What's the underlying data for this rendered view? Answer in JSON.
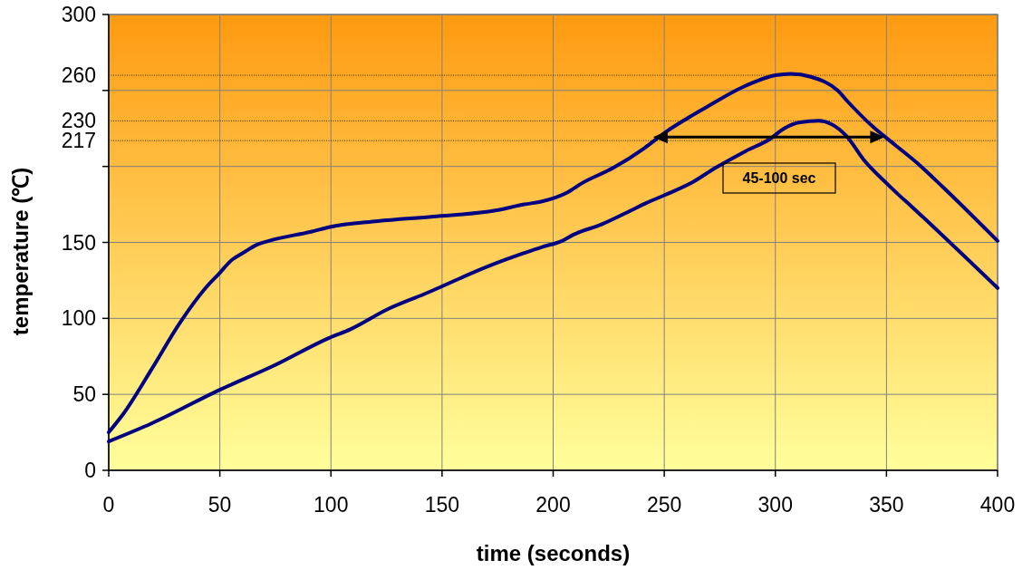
{
  "chart_data": {
    "type": "line",
    "xlabel": "time (seconds)",
    "ylabel": "temperature (℃)",
    "xlim": [
      0,
      400
    ],
    "xticks": [
      0,
      50,
      100,
      150,
      200,
      250,
      300,
      350,
      400
    ],
    "ylim": [
      0,
      300
    ],
    "yticks": [
      0,
      50,
      100,
      150,
      {
        "value": 200,
        "label": null
      },
      {
        "value": 250,
        "label": null
      },
      300
    ],
    "grid": true,
    "marker": "none",
    "line_style": "solid",
    "ref_lines": [
      {
        "axis": "y",
        "value": 217,
        "label": "217",
        "color": "#000000",
        "line_style": "dotted"
      },
      {
        "axis": "y",
        "value": 230,
        "label": "230",
        "color": "#000000",
        "line_style": "dotted"
      },
      {
        "axis": "y",
        "value": 260,
        "label": "260",
        "color": "#000000",
        "line_style": "dotted"
      }
    ],
    "annotations": [
      "45-100 sec"
    ],
    "series": [
      {
        "color": "#000080",
        "x": [
          0,
          7,
          19.5,
          32,
          43.6,
          50,
          55,
          61.5,
          66,
          72,
          91,
          99,
          121,
          146,
          174,
          187,
          195,
          206.5,
          213,
          227,
          241,
          250,
          269,
          285,
          300,
          307,
          316,
          328,
          333,
          344,
          354,
          364,
          375,
          400
        ],
        "values": [
          25,
          38,
          67,
          97,
          120,
          130,
          138,
          144,
          148,
          151,
          157,
          160,
          164,
          167,
          171,
          175,
          177,
          183,
          189,
          199,
          212,
          222,
          239,
          252,
          260,
          261,
          259,
          250,
          242,
          226,
          214,
          202,
          187,
          151
        ]
      },
      {
        "color": "#000080",
        "x": [
          0,
          19.5,
          50,
          74.5,
          99,
          109,
          125.5,
          142,
          172,
          187,
          195,
          204,
          209,
          222,
          235,
          242,
          250,
          262,
          273,
          286.5,
          297.5,
          304,
          311,
          319.6,
          325,
          332,
          340,
          350,
          355,
          361,
          400
        ],
        "values": [
          19,
          31,
          53,
          69,
          87,
          93,
          106,
          116,
          135,
          143,
          147,
          151,
          155,
          162,
          171,
          176,
          181,
          189,
          199,
          210,
          218,
          225,
          229,
          230,
          228,
          220,
          204,
          189,
          182,
          174,
          120
        ]
      }
    ]
  }
}
